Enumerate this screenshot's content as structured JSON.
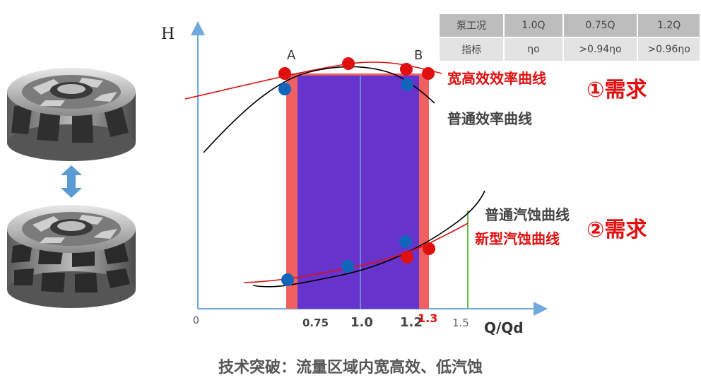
{
  "chart": {
    "y_axis_label": "H",
    "x_axis_label": "Q/Qd",
    "origin_label": "0",
    "point_a_label": "A",
    "point_b_label": "B",
    "ticks": [
      {
        "label": "0.75",
        "bold": true,
        "red": false
      },
      {
        "label": "1.0",
        "bold": true,
        "red": false
      },
      {
        "label": "1.2",
        "bold": true,
        "red": false
      },
      {
        "label": "1.3",
        "bold": true,
        "red": true
      },
      {
        "label": "1.5",
        "bold": false,
        "red": false
      }
    ]
  },
  "curve_labels": {
    "wide_efficiency": "宽高效效率曲线",
    "normal_efficiency": "普通效率曲线",
    "normal_cavitation": "普通汽蚀曲线",
    "new_cavitation": "新型汽蚀曲线"
  },
  "requirements": {
    "req1": "①需求",
    "req2": "②需求"
  },
  "table": {
    "header": [
      "泵工况",
      "1.0Q",
      "0.75Q",
      "1.2Q"
    ],
    "row": [
      "指标",
      "ηo",
      ">0.94ηo",
      ">0.96ηo"
    ]
  },
  "footer": "技术突破：流量区域内宽高效、低汽蚀",
  "colors": {
    "axis": "#6fa8dc",
    "red": "#e01010",
    "black_curve": "#000000",
    "purple": "#6633cc",
    "salmon": "#f06060",
    "green": "#66bb44",
    "blue_dot": "#1166bb"
  }
}
